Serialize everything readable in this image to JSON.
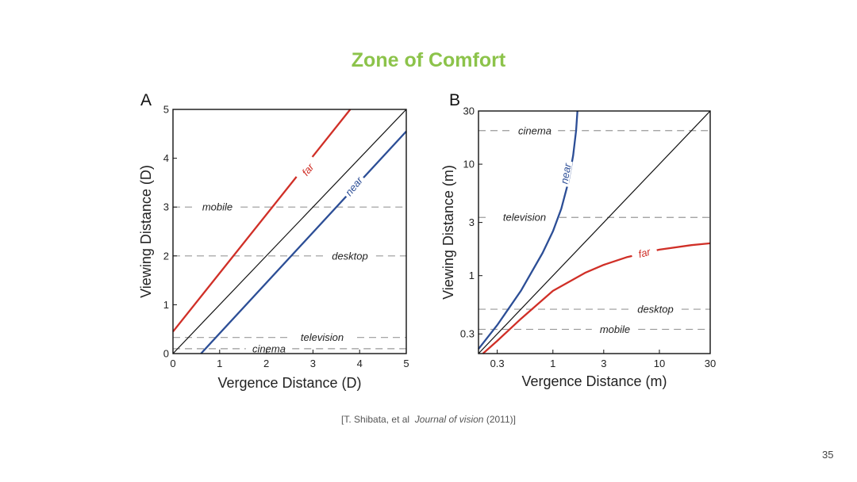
{
  "slide": {
    "title": "Zone of Comfort",
    "citation_prefix": "[T. Shibata, et al",
    "citation_journal": "Journal of vision",
    "citation_suffix": "(2011)]",
    "page_number": "35"
  },
  "colors": {
    "title": "#8cc34a",
    "far": "#d02f27",
    "near": "#2c4e96",
    "diagonal": "#111111",
    "reference": "#999999"
  },
  "chart_data": [
    {
      "panel": "A",
      "type": "line",
      "xlabel": "Vergence Distance (D)",
      "ylabel": "Viewing Distance (D)",
      "xlim": [
        0,
        5
      ],
      "ylim": [
        0,
        5
      ],
      "xscale": "linear",
      "yscale": "linear",
      "xticks": [
        0,
        1,
        2,
        3,
        4,
        5
      ],
      "yticks": [
        0,
        1,
        2,
        3,
        4,
        5
      ],
      "xtick_labels": [
        "0",
        "1",
        "2",
        "3",
        "4",
        "5"
      ],
      "ytick_labels": [
        "0",
        "1",
        "2",
        "3",
        "4",
        "5"
      ],
      "grid": false,
      "series": [
        {
          "name": "far",
          "points": [
            [
              0,
              0.45
            ],
            [
              3.8,
              5.0
            ]
          ]
        },
        {
          "name": "near",
          "points": [
            [
              0.6,
              0
            ],
            [
              5.0,
              4.55
            ]
          ]
        },
        {
          "points": [
            [
              0,
              0
            ],
            [
              5,
              5
            ]
          ]
        }
      ],
      "reference_lines": [
        {
          "label": "mobile",
          "y": 3.0
        },
        {
          "label": "desktop",
          "y": 2.0
        },
        {
          "label": "television",
          "y": 0.33
        },
        {
          "label": "cinema",
          "y": 0.1
        }
      ]
    },
    {
      "panel": "B",
      "type": "line",
      "xlabel": "Vergence Distance (m)",
      "ylabel": "Viewing Distance (m)",
      "xlim": [
        0.2,
        30
      ],
      "ylim": [
        0.2,
        30
      ],
      "xscale": "log",
      "yscale": "log",
      "xticks": [
        0.3,
        1,
        3,
        10,
        30
      ],
      "yticks": [
        0.3,
        1,
        3,
        10,
        30
      ],
      "xtick_labels": [
        "0.3",
        "1",
        "3",
        "10",
        "30"
      ],
      "ytick_labels": [
        "0.3",
        "1",
        "3",
        "10",
        "30"
      ],
      "grid": false,
      "series": [
        {
          "name": "far",
          "points": [
            [
              0.22,
              0.2
            ],
            [
              0.3,
              0.26
            ],
            [
              0.5,
              0.41
            ],
            [
              1,
              0.73
            ],
            [
              2,
              1.06
            ],
            [
              3,
              1.25
            ],
            [
              5,
              1.47
            ],
            [
              10,
              1.71
            ],
            [
              20,
              1.88
            ],
            [
              30,
              1.95
            ]
          ]
        },
        {
          "name": "near",
          "points": [
            [
              0.2,
              0.22
            ],
            [
              0.3,
              0.36
            ],
            [
              0.5,
              0.73
            ],
            [
              0.8,
              1.6
            ],
            [
              1,
              2.5
            ],
            [
              1.2,
              4.0
            ],
            [
              1.4,
              7.0
            ],
            [
              1.55,
              12.0
            ],
            [
              1.65,
              20.0
            ],
            [
              1.7,
              30.0
            ]
          ]
        },
        {
          "points": [
            [
              0.2,
              0.2
            ],
            [
              30,
              30
            ]
          ]
        }
      ],
      "reference_lines": [
        {
          "label": "cinema",
          "y": 20
        },
        {
          "label": "television",
          "y": 3.33
        },
        {
          "label": "desktop",
          "y": 0.5
        },
        {
          "label": "mobile",
          "y": 0.33
        }
      ]
    }
  ]
}
